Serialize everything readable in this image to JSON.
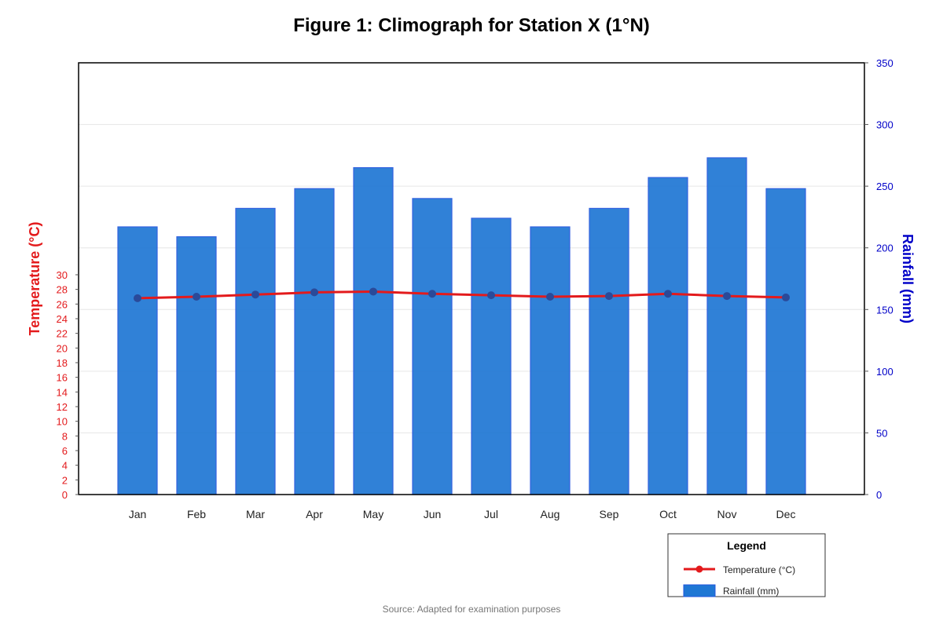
{
  "chart_data": {
    "type": "bar",
    "title": "Figure 1: Climograph for Station X (1°N)",
    "categories": [
      "Jan",
      "Feb",
      "Mar",
      "Apr",
      "May",
      "Jun",
      "Jul",
      "Aug",
      "Sep",
      "Oct",
      "Nov",
      "Dec"
    ],
    "series": [
      {
        "name": "Rainfall (mm)",
        "type": "bar",
        "axis": "right",
        "color": "#1f77d4",
        "values": [
          217,
          209,
          232,
          248,
          265,
          240,
          224,
          217,
          232,
          257,
          273,
          248
        ]
      },
      {
        "name": "Temperature (°C)",
        "type": "line",
        "axis": "left",
        "color": "#e31a1c",
        "values": [
          26.8,
          27.0,
          27.3,
          27.6,
          27.7,
          27.4,
          27.2,
          27.0,
          27.1,
          27.4,
          27.1,
          26.9
        ]
      }
    ],
    "ylabel_left": "Temperature (°C)",
    "ylabel_right": "Rainfall (mm)",
    "yticks_left": [
      0,
      2,
      4,
      6,
      8,
      10,
      12,
      14,
      16,
      18,
      20,
      22,
      24,
      26,
      28,
      30
    ],
    "yticks_right": [
      0,
      50,
      100,
      150,
      200,
      250,
      300,
      350
    ],
    "ylim_left": [
      0,
      30
    ],
    "ylim_right": [
      0,
      350
    ],
    "grid": true,
    "legend": {
      "title": "Legend",
      "placement": "bottom-right",
      "items": [
        "Temperature (°C)",
        "Rainfall (mm)"
      ]
    },
    "source": "Source: Adapted for examination purposes",
    "colors": {
      "temperature_axis": "#e31a1c",
      "rainfall_axis": "#0000c8",
      "bar_fill": "#1f77d4",
      "bar_stroke": "#2255dd",
      "marker": "#2a4a9a"
    }
  }
}
